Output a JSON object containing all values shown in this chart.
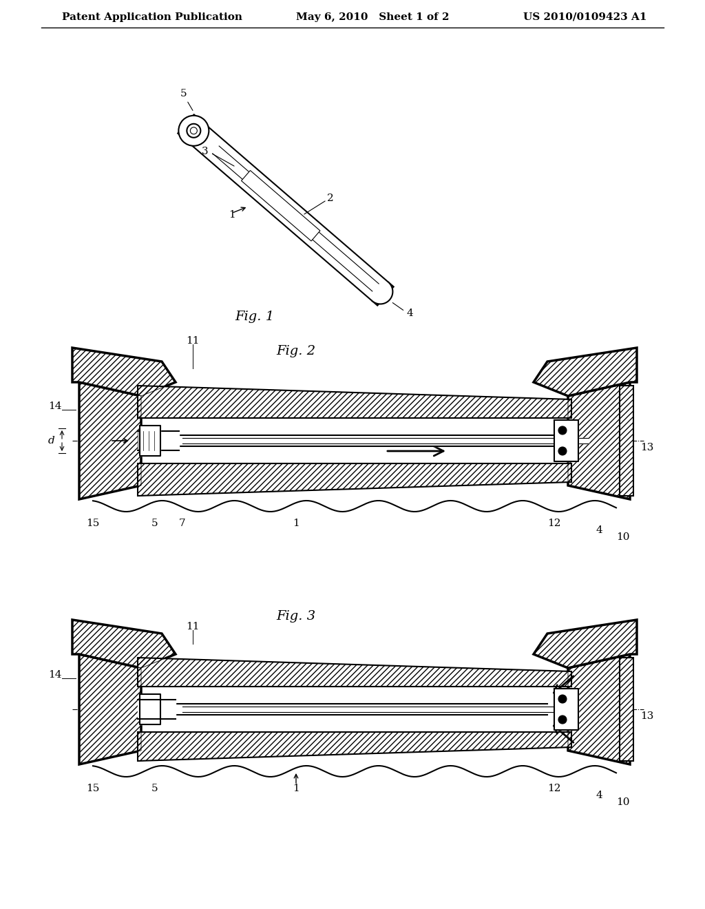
{
  "background_color": "#ffffff",
  "header_left": "Patent Application Publication",
  "header_center": "May 6, 2010   Sheet 1 of 2",
  "header_right": "US 2010/0109423 A1",
  "fig1_label": "Fig. 1",
  "fig2_label": "Fig. 2",
  "fig3_label": "Fig. 3",
  "line_color": "#000000",
  "hatch_color": "#000000",
  "label_color": "#000000",
  "font_size_header": 11,
  "font_size_label": 12,
  "font_size_num": 11
}
